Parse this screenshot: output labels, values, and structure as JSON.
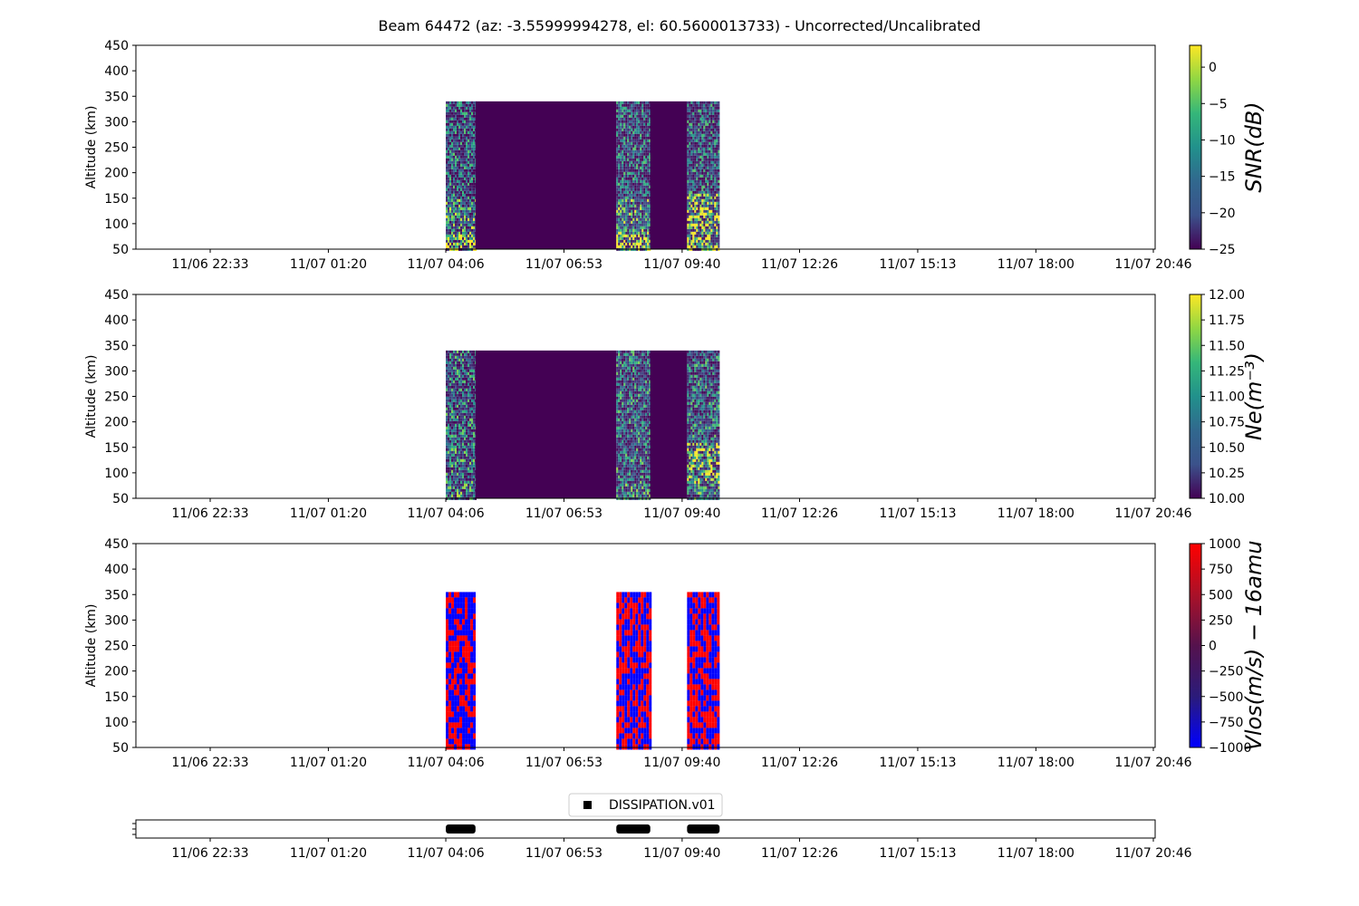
{
  "title": "Beam 64472 (az: -3.55999994278, el: 60.5600013733) - Uncorrected/Uncalibrated",
  "colors": {
    "viridis_low": "#440154",
    "viridis_mid_low": "#31688e",
    "viridis_mid": "#21918c",
    "viridis_mid_high": "#35b779",
    "viridis_high": "#fde725",
    "vlos_negative": "#0000ff",
    "vlos_positive": "#ff0000"
  },
  "chart_data": [
    {
      "type": "heatmap",
      "name": "snr",
      "ylabel": "Altitude (km)",
      "colorbar_label": "SNR(dB)",
      "colormap": "viridis",
      "ylim": [
        50,
        450
      ],
      "y_ticks": [
        "50",
        "100",
        "150",
        "200",
        "250",
        "300",
        "350",
        "400",
        "450"
      ],
      "x_ticks": [
        "11/06 22:33",
        "11/07 01:20",
        "11/07 04:06",
        "11/07 06:53",
        "11/07 09:40",
        "11/07 12:26",
        "11/07 15:13",
        "11/07 18:00",
        "11/07 20:46"
      ],
      "colorbar_range": [
        -25,
        3
      ],
      "colorbar_ticks": [
        "0",
        "−5",
        "−10",
        "−15",
        "−20",
        "−25"
      ],
      "data_top_altitude": 340,
      "segments": [
        {
          "start": "11/07 04:06",
          "end": "11/07 04:48",
          "kind": "noisy"
        },
        {
          "start": "11/07 04:48",
          "end": "11/07 08:07",
          "kind": "empty"
        },
        {
          "start": "11/07 08:07",
          "end": "11/07 08:55",
          "kind": "noisy"
        },
        {
          "start": "11/07 08:55",
          "end": "11/07 09:47",
          "kind": "empty"
        },
        {
          "start": "11/07 09:47",
          "end": "11/07 10:33",
          "kind": "noisy"
        }
      ]
    },
    {
      "type": "heatmap",
      "name": "ne",
      "ylabel": "Altitude (km)",
      "colorbar_label": "Ne(m⁻³)",
      "colormap": "viridis",
      "ylim": [
        50,
        450
      ],
      "y_ticks": [
        "50",
        "100",
        "150",
        "200",
        "250",
        "300",
        "350",
        "400",
        "450"
      ],
      "x_ticks": [
        "11/06 22:33",
        "11/07 01:20",
        "11/07 04:06",
        "11/07 06:53",
        "11/07 09:40",
        "11/07 12:26",
        "11/07 15:13",
        "11/07 18:00",
        "11/07 20:46"
      ],
      "colorbar_range": [
        10,
        12
      ],
      "colorbar_ticks": [
        "12.00",
        "11.75",
        "11.50",
        "11.25",
        "11.00",
        "10.75",
        "10.50",
        "10.25",
        "10.00"
      ],
      "data_top_altitude": 340,
      "segments": [
        {
          "start": "11/07 04:06",
          "end": "11/07 04:48",
          "kind": "noisy"
        },
        {
          "start": "11/07 04:48",
          "end": "11/07 08:07",
          "kind": "empty"
        },
        {
          "start": "11/07 08:07",
          "end": "11/07 08:55",
          "kind": "noisy"
        },
        {
          "start": "11/07 08:55",
          "end": "11/07 09:47",
          "kind": "empty"
        },
        {
          "start": "11/07 09:47",
          "end": "11/07 10:33",
          "kind": "noisy"
        }
      ]
    },
    {
      "type": "heatmap",
      "name": "vlos",
      "ylabel": "Altitude (km)",
      "colorbar_label": "Vlos(m/s) − 16amu",
      "colormap": "bwr",
      "ylim": [
        50,
        450
      ],
      "y_ticks": [
        "50",
        "100",
        "150",
        "200",
        "250",
        "300",
        "350",
        "400",
        "450"
      ],
      "x_ticks": [
        "11/06 22:33",
        "11/07 01:20",
        "11/07 04:06",
        "11/07 06:53",
        "11/07 09:40",
        "11/07 12:26",
        "11/07 15:13",
        "11/07 18:00",
        "11/07 20:46"
      ],
      "colorbar_range": [
        -1000,
        1000
      ],
      "colorbar_ticks": [
        "1000",
        "750",
        "500",
        "250",
        "0",
        "−250",
        "−500",
        "−750",
        "−1000"
      ],
      "data_top_altitude": 355,
      "segments": [
        {
          "start": "11/07 04:06",
          "end": "11/07 04:48",
          "kind": "noisy"
        },
        {
          "start": "11/07 08:07",
          "end": "11/07 08:55",
          "kind": "noisy"
        },
        {
          "start": "11/07 09:47",
          "end": "11/07 10:33",
          "kind": "noisy"
        }
      ]
    },
    {
      "type": "bar",
      "name": "experiment-timeline",
      "legend": "DISSIPATION.v01",
      "legend_position": "top-center",
      "x_ticks": [
        "11/06 22:33",
        "11/07 01:20",
        "11/07 04:06",
        "11/07 06:53",
        "11/07 09:40",
        "11/07 12:26",
        "11/07 15:13",
        "11/07 18:00",
        "11/07 20:46"
      ],
      "intervals": [
        {
          "start": "11/07 04:06",
          "end": "11/07 04:48"
        },
        {
          "start": "11/07 08:07",
          "end": "11/07 08:55"
        },
        {
          "start": "11/07 09:47",
          "end": "11/07 10:33"
        }
      ]
    }
  ]
}
